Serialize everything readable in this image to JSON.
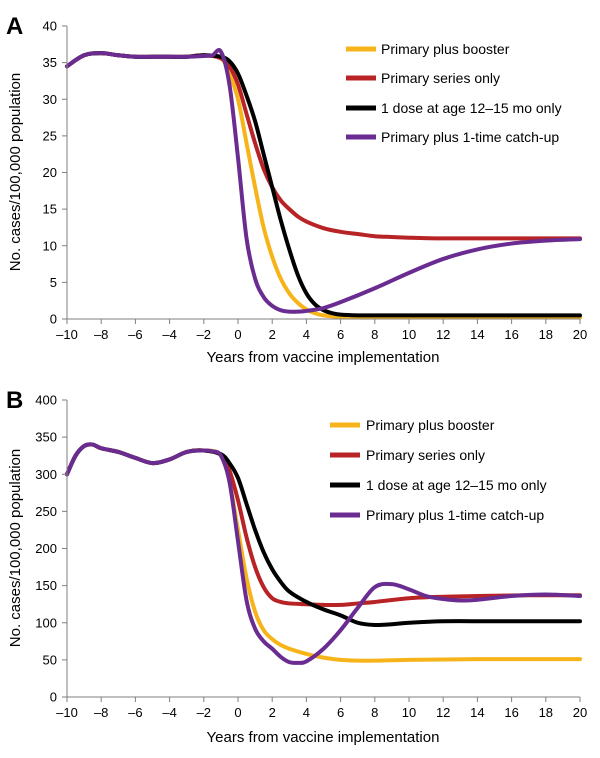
{
  "chart_data": [
    {
      "panel_label": "A",
      "type": "line",
      "xlabel": "Years from vaccine implementation",
      "ylabel": "No. cases/100,000 population",
      "xlim": [
        -10,
        20
      ],
      "ylim": [
        0,
        40
      ],
      "xticks": [
        -10,
        -8,
        -6,
        -4,
        -2,
        0,
        2,
        4,
        6,
        8,
        10,
        12,
        14,
        16,
        18,
        20
      ],
      "yticks": [
        0,
        5,
        10,
        15,
        20,
        25,
        30,
        35,
        40
      ],
      "grid": false,
      "legend_position": "top-right",
      "series": [
        {
          "name": "Primary plus booster",
          "color": "#F7B41A",
          "x": [
            -10,
            -9,
            -8,
            -7,
            -6,
            -5,
            -4,
            -3,
            -2,
            -1,
            -0.5,
            0,
            0.5,
            1,
            1.5,
            2,
            2.5,
            3,
            3.5,
            4,
            4.5,
            5,
            6,
            7,
            8,
            10,
            12,
            15,
            20
          ],
          "y": [
            34.5,
            36,
            36.3,
            36,
            35.8,
            35.8,
            35.8,
            35.8,
            36,
            35.6,
            33.5,
            30,
            24,
            18,
            12.5,
            8.5,
            5.5,
            3.5,
            2.2,
            1.3,
            0.8,
            0.5,
            0.3,
            0.2,
            0.2,
            0.2,
            0.2,
            0.2,
            0.2
          ]
        },
        {
          "name": "Primary series only",
          "color": "#B82326",
          "x": [
            -10,
            -9,
            -8,
            -7,
            -6,
            -5,
            -4,
            -3,
            -2,
            -1,
            -0.5,
            0,
            0.5,
            1,
            1.5,
            2,
            2.5,
            3,
            3.5,
            4,
            5,
            6,
            7,
            8,
            9,
            10,
            12,
            15,
            20
          ],
          "y": [
            34.5,
            36,
            36.3,
            36,
            35.8,
            35.8,
            35.8,
            35.8,
            36,
            35.6,
            34.5,
            32,
            28,
            24,
            20.5,
            18,
            16.2,
            15,
            14,
            13.3,
            12.4,
            11.9,
            11.6,
            11.3,
            11.2,
            11.1,
            11,
            11,
            11
          ]
        },
        {
          "name": "1 dose at age 12–15 mo only",
          "color": "#000000",
          "x": [
            -10,
            -9,
            -8,
            -7,
            -6,
            -5,
            -4,
            -3,
            -2,
            -1,
            -0.5,
            0,
            0.5,
            1,
            1.5,
            2,
            2.5,
            3,
            3.5,
            4,
            4.5,
            5,
            5.5,
            6,
            7,
            8,
            10,
            15,
            20
          ],
          "y": [
            34.5,
            36,
            36.3,
            36,
            35.8,
            35.8,
            35.8,
            35.8,
            36,
            35.8,
            35.2,
            33.5,
            30.5,
            27,
            22.5,
            18,
            13.5,
            9.5,
            6,
            3.5,
            2,
            1.2,
            0.8,
            0.6,
            0.5,
            0.5,
            0.5,
            0.5,
            0.5
          ]
        },
        {
          "name": "Primary plus 1-time catch-up",
          "color": "#6A2C91",
          "x": [
            -10,
            -9,
            -8,
            -7,
            -6,
            -5,
            -4,
            -3,
            -2,
            -1.5,
            -1,
            -0.5,
            0,
            0.5,
            1,
            1.5,
            2,
            2.5,
            3,
            3.5,
            4,
            5,
            6,
            8,
            10,
            12,
            14,
            16,
            18,
            20
          ],
          "y": [
            34.5,
            36,
            36.3,
            36,
            35.8,
            35.8,
            35.8,
            35.8,
            35.9,
            36,
            36.5,
            32,
            22,
            11,
            5.5,
            3,
            1.8,
            1.2,
            1,
            1,
            1.1,
            1.5,
            2.3,
            4.2,
            6.3,
            8.2,
            9.5,
            10.3,
            10.7,
            10.9
          ]
        }
      ]
    },
    {
      "panel_label": "B",
      "type": "line",
      "xlabel": "Years from vaccine implementation",
      "ylabel": "No. cases/100,000 population",
      "xlim": [
        -10,
        20
      ],
      "ylim": [
        0,
        400
      ],
      "xticks": [
        -10,
        -8,
        -6,
        -4,
        -2,
        0,
        2,
        4,
        6,
        8,
        10,
        12,
        14,
        16,
        18,
        20
      ],
      "yticks": [
        0,
        50,
        100,
        150,
        200,
        250,
        300,
        350,
        400
      ],
      "grid": false,
      "legend_position": "top-right",
      "series": [
        {
          "name": "Primary plus booster",
          "color": "#F7B41A",
          "x": [
            -10,
            -9.5,
            -9,
            -8.5,
            -8,
            -7,
            -6,
            -5,
            -4,
            -3,
            -2,
            -1,
            -0.5,
            0,
            0.5,
            1,
            1.5,
            2,
            2.5,
            3,
            4,
            5,
            6,
            7,
            8,
            10,
            14,
            20
          ],
          "y": [
            300,
            325,
            338,
            340,
            335,
            330,
            322,
            315,
            320,
            330,
            332,
            326,
            290,
            225,
            160,
            115,
            90,
            78,
            70,
            65,
            58,
            53,
            50,
            49,
            49,
            50,
            51,
            51
          ]
        },
        {
          "name": "Primary series only",
          "color": "#B82326",
          "x": [
            -10,
            -9.5,
            -9,
            -8.5,
            -8,
            -7,
            -6,
            -5,
            -4,
            -3,
            -2,
            -1,
            -0.5,
            0,
            0.5,
            1,
            1.5,
            2,
            2.5,
            3,
            4,
            5,
            6,
            7,
            8,
            10,
            12,
            14,
            17,
            20
          ],
          "y": [
            300,
            325,
            338,
            340,
            335,
            330,
            322,
            315,
            320,
            330,
            332,
            326,
            305,
            265,
            215,
            175,
            148,
            133,
            128,
            126,
            125,
            124,
            124,
            126,
            128,
            133,
            135,
            136,
            137,
            137
          ]
        },
        {
          "name": "1 dose at age 12–15 mo only",
          "color": "#000000",
          "x": [
            -10,
            -9.5,
            -9,
            -8.5,
            -8,
            -7,
            -6,
            -5,
            -4,
            -3,
            -2,
            -1,
            -0.5,
            0,
            0.5,
            1,
            1.5,
            2,
            2.5,
            3,
            4,
            5,
            6,
            7,
            8,
            9,
            10,
            12,
            15,
            20
          ],
          "y": [
            300,
            325,
            338,
            340,
            335,
            330,
            322,
            315,
            320,
            330,
            332,
            327,
            315,
            295,
            260,
            225,
            195,
            172,
            155,
            142,
            128,
            118,
            110,
            100,
            97,
            98,
            100,
            102,
            102,
            102
          ]
        },
        {
          "name": "Primary plus 1-time catch-up",
          "color": "#6A2C91",
          "x": [
            -10,
            -9.5,
            -9,
            -8.5,
            -8,
            -7,
            -6,
            -5,
            -4,
            -3,
            -2,
            -1.5,
            -1,
            -0.5,
            0,
            0.5,
            1,
            1.5,
            2,
            2.5,
            3,
            3.5,
            4,
            5,
            6,
            7,
            8,
            9,
            10,
            11,
            12,
            13,
            14,
            16,
            18,
            20
          ],
          "y": [
            300,
            325,
            338,
            340,
            335,
            330,
            322,
            315,
            320,
            330,
            332,
            331,
            325,
            290,
            210,
            130,
            92,
            75,
            65,
            54,
            47,
            46,
            48,
            65,
            90,
            120,
            148,
            152,
            145,
            136,
            132,
            130,
            131,
            136,
            138,
            136
          ]
        }
      ]
    }
  ]
}
